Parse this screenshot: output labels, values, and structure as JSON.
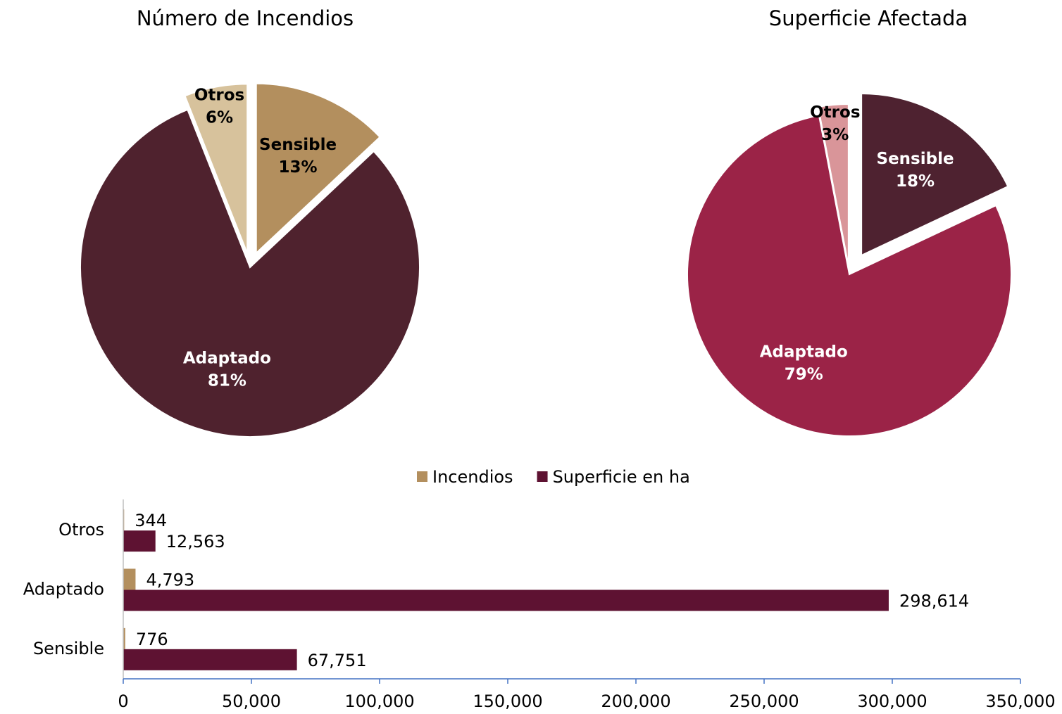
{
  "chart_data": [
    {
      "type": "pie",
      "title": "Número de Incendios",
      "categories": [
        "Sensible",
        "Adaptado",
        "Otros"
      ],
      "values": [
        13,
        81,
        6
      ],
      "value_labels": [
        "13%",
        "81%",
        "6%"
      ],
      "colors": [
        "#b38f5e",
        "#4f222e",
        "#d7c29c"
      ]
    },
    {
      "type": "pie",
      "title": "Superficie Afectada",
      "categories": [
        "Sensible",
        "Adaptado",
        "Otros"
      ],
      "values": [
        18,
        79,
        3
      ],
      "value_labels": [
        "18%",
        "79%",
        "3%"
      ],
      "colors": [
        "#4e2230",
        "#9b2347",
        "#d99599"
      ]
    },
    {
      "type": "hbar",
      "categories": [
        "Otros",
        "Adaptado",
        "Sensible"
      ],
      "series": [
        {
          "name": "Incendios",
          "color": "#b38f5e",
          "values": [
            344,
            4793,
            776
          ],
          "value_labels": [
            "344",
            "4,793",
            "776"
          ]
        },
        {
          "name": "Superficie en ha",
          "color": "#5e1232",
          "values": [
            12563,
            298614,
            67751
          ],
          "value_labels": [
            "12,563",
            "298,614",
            "67,751"
          ]
        }
      ],
      "xlim": [
        0,
        350000
      ],
      "xticks": [
        0,
        {
          "value": 50000,
          "label": "50,000"
        },
        {
          "value": 100000,
          "label": "100,000"
        },
        {
          "value": 150000,
          "label": "150,000"
        },
        {
          "value": 200000,
          "label": "200,000"
        },
        {
          "value": 250000,
          "label": "250,000"
        },
        {
          "value": 300000,
          "label": "300,000"
        },
        {
          "value": 350000,
          "label": "350,000"
        }
      ]
    }
  ]
}
